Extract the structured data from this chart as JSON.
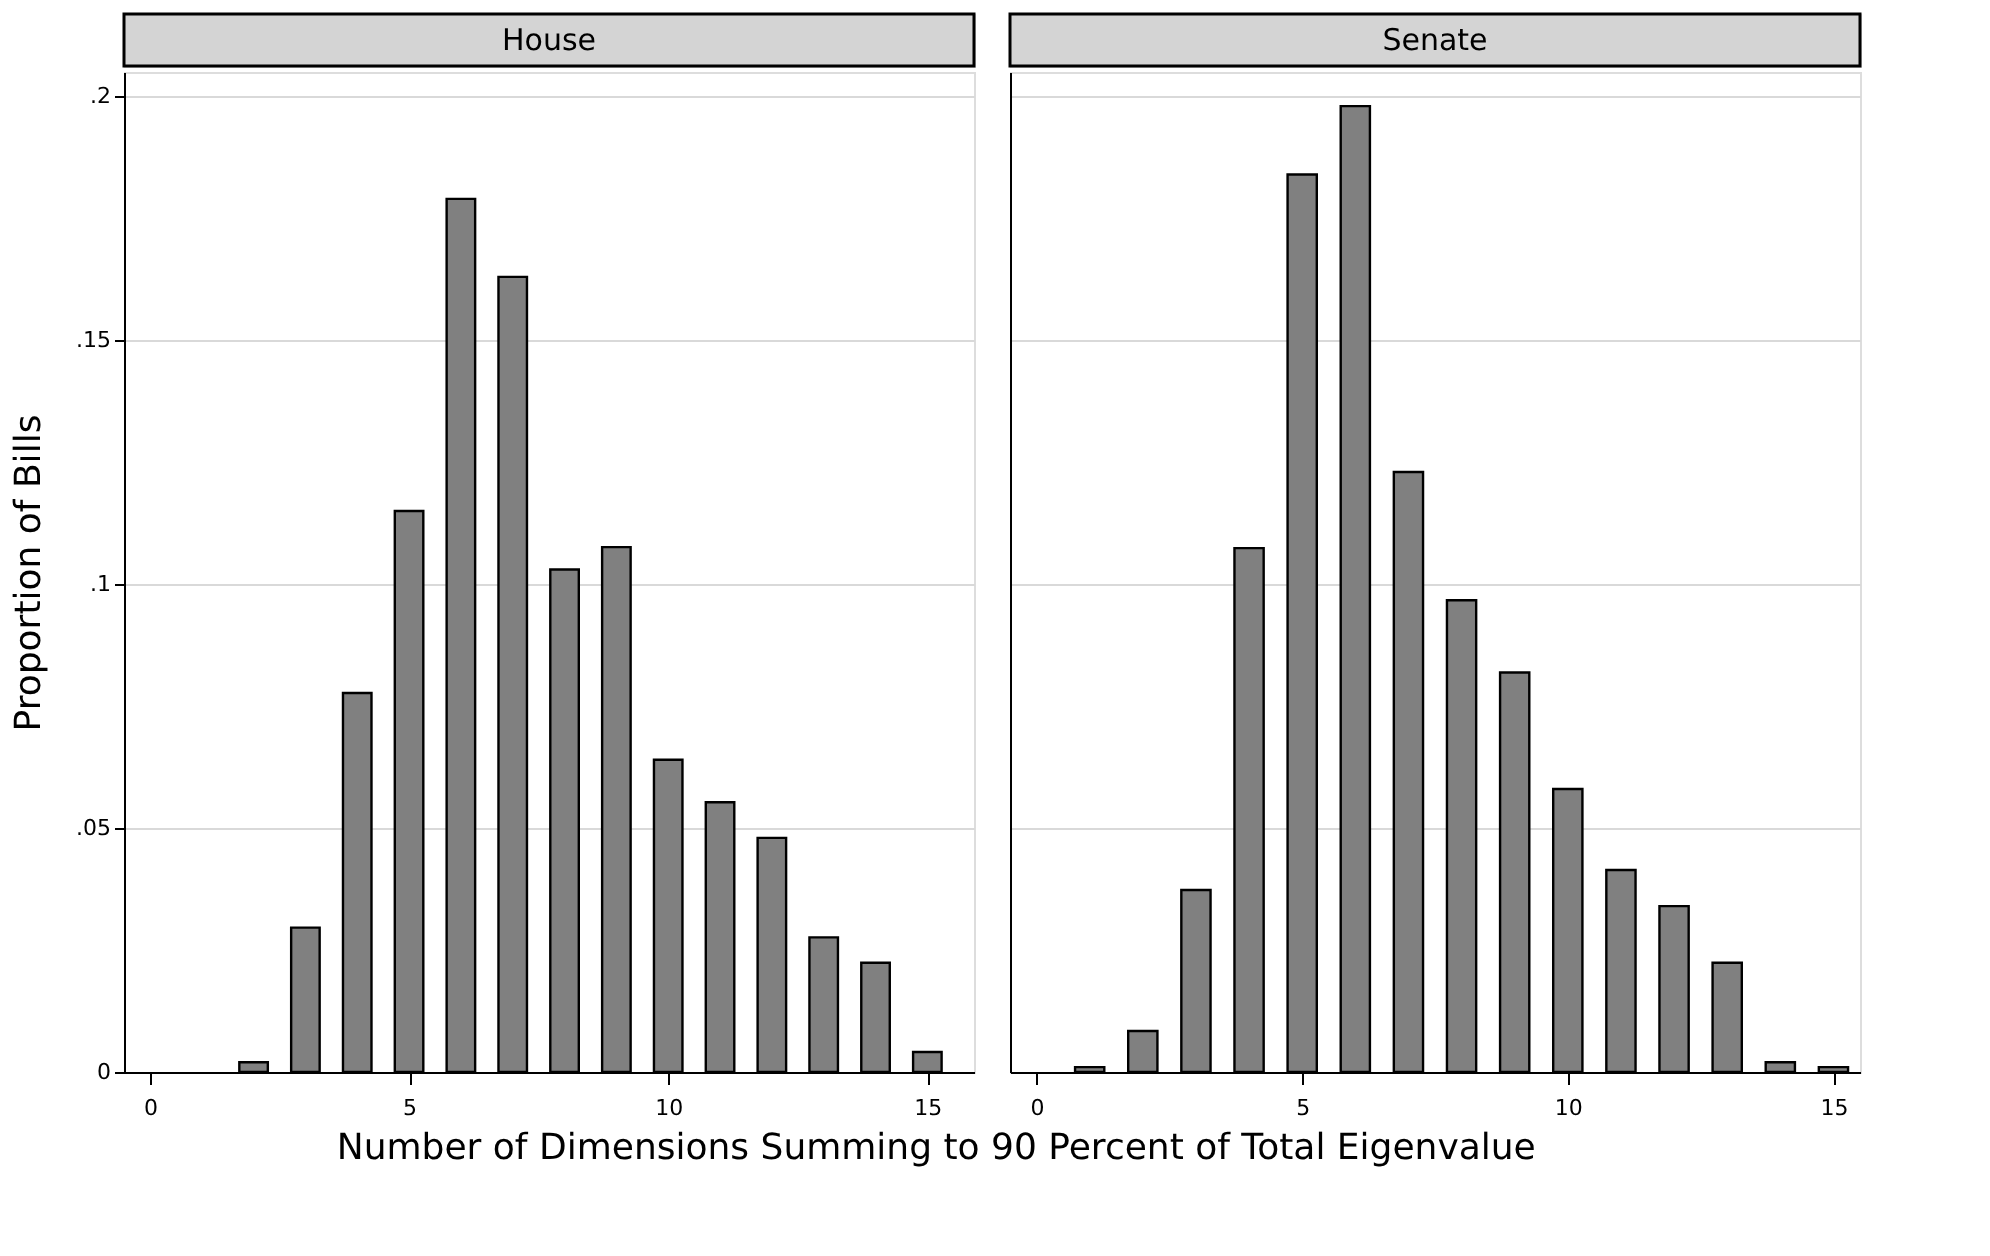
{
  "chart_data": [
    {
      "type": "bar",
      "title": "House",
      "xlabel": "Number of Dimensions Summing to 90 Percent of Total Eigenvalue",
      "ylabel": "Proportion of Bills",
      "x": [
        2,
        3,
        4,
        5,
        6,
        7,
        8,
        9,
        10,
        11,
        12,
        13,
        14,
        15
      ],
      "values": [
        0.002,
        0.0296,
        0.0777,
        0.115,
        0.179,
        0.163,
        0.103,
        0.1076,
        0.064,
        0.0553,
        0.048,
        0.0276,
        0.0224,
        0.0041
      ],
      "color": "#808080",
      "xlim": [
        -0.5,
        15.9
      ],
      "xticks": [
        0,
        5,
        10,
        15
      ],
      "ylim": [
        0,
        0.205
      ],
      "yticks": [
        {
          "value": 0,
          "label": "0"
        },
        {
          "value": 0.05,
          "label": ".05"
        },
        {
          "value": 0.1,
          "label": ".1"
        },
        {
          "value": 0.15,
          "label": ".15"
        },
        {
          "value": 0.2,
          "label": ".2"
        }
      ],
      "grid": "y"
    },
    {
      "type": "bar",
      "title": "Senate",
      "x": [
        1,
        2,
        3,
        4,
        5,
        6,
        7,
        8,
        9,
        10,
        11,
        12,
        13,
        14,
        15
      ],
      "values": [
        0.001,
        0.0084,
        0.0373,
        0.1074,
        0.184,
        0.198,
        0.123,
        0.0967,
        0.0819,
        0.058,
        0.0414,
        0.034,
        0.0224,
        0.002,
        0.001
      ],
      "color": "#808080",
      "xlim": [
        -0.5,
        15.5
      ],
      "xticks": [
        0,
        5,
        10,
        15
      ],
      "ylim": [
        0,
        0.205
      ],
      "yticks": [
        0,
        0.05,
        0.1,
        0.15,
        0.2
      ],
      "grid": "y",
      "tick_labels": "x"
    }
  ]
}
